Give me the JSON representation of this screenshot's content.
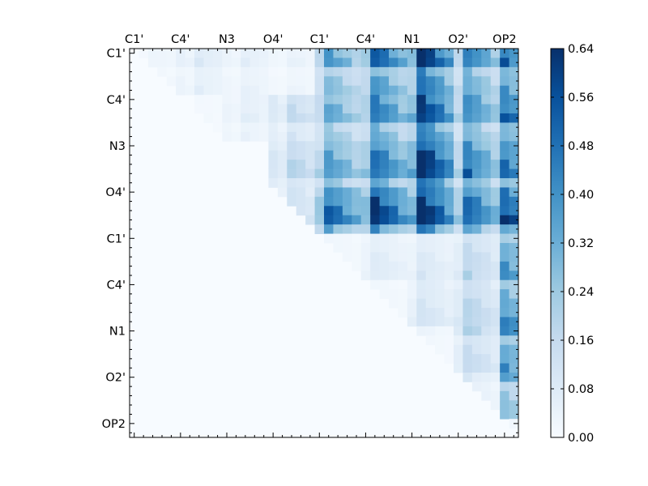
{
  "chart_data": {
    "type": "heatmap",
    "title": "",
    "xlabel": "",
    "ylabel": "",
    "n": 42,
    "matrix_shape": "upper-triangular",
    "x_ticks_top": [
      "C1'",
      "C4'",
      "N3",
      "O4'",
      "C1'",
      "C4'",
      "N1",
      "O2'",
      "OP2"
    ],
    "y_ticks_left": [
      "C1'",
      "C4'",
      "N3",
      "O4'",
      "C1'",
      "C4'",
      "N1",
      "O2'",
      "OP2"
    ],
    "tick_label_indices": [
      0,
      5,
      10,
      15,
      20,
      25,
      30,
      35,
      40
    ],
    "colormap": "Blues",
    "color_stops": [
      "#f7fbff",
      "#deebf7",
      "#c6dbef",
      "#9ecae1",
      "#6baed6",
      "#4292c6",
      "#2171b5",
      "#08519c",
      "#08306b"
    ],
    "vmin": 0.0,
    "vmax": 0.64,
    "colorbar_ticks": [
      "0.00",
      "0.08",
      "0.16",
      "0.24",
      "0.32",
      "0.40",
      "0.48",
      "0.56",
      "0.64"
    ],
    "block_means": [
      [
        0.02,
        0.05,
        0.04,
        0.03,
        0.22,
        0.32,
        0.42,
        0.3,
        0.28
      ],
      [
        null,
        0.01,
        0.04,
        0.1,
        0.2,
        0.28,
        0.4,
        0.28,
        0.28
      ],
      [
        null,
        null,
        0.0,
        0.12,
        0.22,
        0.3,
        0.44,
        0.3,
        0.26
      ],
      [
        null,
        null,
        null,
        0.1,
        0.32,
        0.4,
        0.46,
        0.36,
        0.34
      ],
      [
        null,
        null,
        null,
        null,
        0.02,
        0.05,
        0.06,
        0.12,
        0.22
      ],
      [
        null,
        null,
        null,
        null,
        null,
        0.02,
        0.08,
        0.14,
        0.24
      ],
      [
        null,
        null,
        null,
        null,
        null,
        null,
        0.02,
        0.12,
        0.24
      ],
      [
        null,
        null,
        null,
        null,
        null,
        null,
        null,
        0.06,
        0.2
      ],
      [
        null,
        null,
        null,
        null,
        null,
        null,
        null,
        null,
        0.06
      ]
    ]
  }
}
